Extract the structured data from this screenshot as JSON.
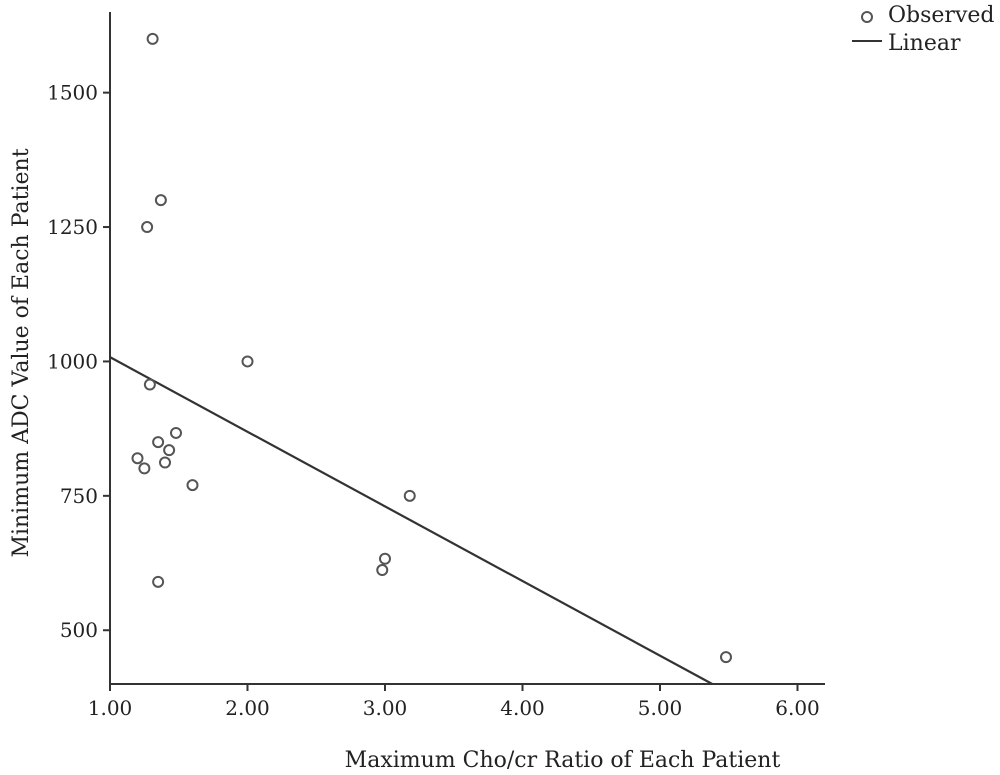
{
  "chart_data": {
    "type": "scatter",
    "title": "",
    "xlabel": "Maximum Cho/cr Ratio of Each Patient",
    "ylabel": "Minimum ADC Value of Each Patient",
    "xlim": [
      1.0,
      6.2
    ],
    "ylim": [
      400,
      1650
    ],
    "x_ticks": [
      1.0,
      2.0,
      3.0,
      4.0,
      5.0,
      6.0
    ],
    "x_tick_labels": [
      "1.00",
      "2.00",
      "3.00",
      "4.00",
      "5.00",
      "6.00"
    ],
    "y_ticks": [
      500,
      750,
      1000,
      1250,
      1500
    ],
    "y_tick_labels": [
      "500",
      "750",
      "1000",
      "1250",
      "1500"
    ],
    "grid": false,
    "legend_position": "top-right",
    "series": [
      {
        "name": "Observed",
        "kind": "scatter",
        "marker": "open-circle",
        "color": "#555555",
        "points": [
          {
            "x": 1.31,
            "y": 1600
          },
          {
            "x": 1.37,
            "y": 1300
          },
          {
            "x": 1.27,
            "y": 1250
          },
          {
            "x": 2.0,
            "y": 1000
          },
          {
            "x": 1.29,
            "y": 957
          },
          {
            "x": 1.48,
            "y": 867
          },
          {
            "x": 1.35,
            "y": 850
          },
          {
            "x": 1.43,
            "y": 835
          },
          {
            "x": 1.2,
            "y": 820
          },
          {
            "x": 1.4,
            "y": 812
          },
          {
            "x": 1.25,
            "y": 801
          },
          {
            "x": 1.6,
            "y": 770
          },
          {
            "x": 3.18,
            "y": 750
          },
          {
            "x": 3.0,
            "y": 633
          },
          {
            "x": 2.98,
            "y": 612
          },
          {
            "x": 1.35,
            "y": 590
          },
          {
            "x": 5.48,
            "y": 450
          }
        ]
      },
      {
        "name": "Linear",
        "kind": "line",
        "color": "#333333",
        "points": [
          {
            "x": 1.0,
            "y": 1008
          },
          {
            "x": 5.38,
            "y": 400
          }
        ]
      }
    ]
  }
}
